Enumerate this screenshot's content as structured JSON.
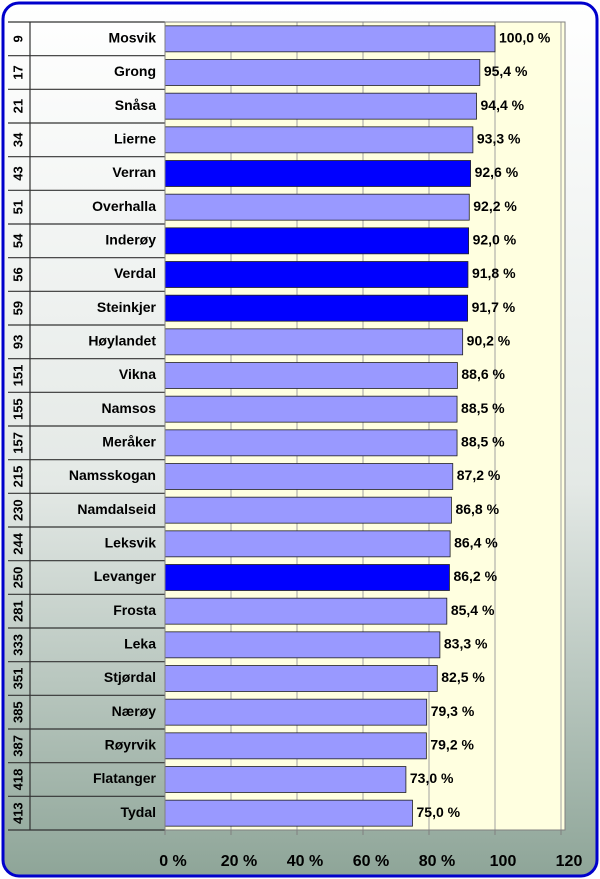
{
  "chart_data": {
    "type": "bar",
    "orientation": "horizontal",
    "categories": [
      "Mosvik",
      "Grong",
      "Snåsa",
      "Lierne",
      "Verran",
      "Overhalla",
      "Inderøy",
      "Verdal",
      "Steinkjer",
      "Høylandet",
      "Vikna",
      "Namsos",
      "Meråker",
      "Namsskogan",
      "Namdalseid",
      "Leksvik",
      "Levanger",
      "Frosta",
      "Leka",
      "Stjørdal",
      "Nærøy",
      "Røyrvik",
      "Flatanger",
      "Tydal"
    ],
    "ranks": [
      9,
      17,
      21,
      34,
      43,
      51,
      54,
      56,
      59,
      93,
      151,
      155,
      157,
      215,
      230,
      244,
      250,
      281,
      333,
      351,
      385,
      387,
      418,
      413
    ],
    "values": [
      100,
      95.4,
      94.4,
      93.3,
      92.6,
      92.2,
      92,
      91.8,
      91.7,
      90.2,
      88.6,
      88.5,
      88.5,
      87.2,
      86.8,
      86.4,
      86.2,
      85.4,
      83.3,
      82.5,
      79.3,
      79.2,
      73,
      75
    ],
    "value_labels": [
      "100,0 %",
      "95,4 %",
      "94,4 %",
      "93,3 %",
      "92,6 %",
      "92,2 %",
      "92,0 %",
      "91,8 %",
      "91,7 %",
      "90,2 %",
      "88,6 %",
      "88,5 %",
      "88,5 %",
      "87,2 %",
      "86,8 %",
      "86,4 %",
      "86,2 %",
      "85,4 %",
      "83,3 %",
      "82,5 %",
      "79,3 %",
      "79,2 %",
      "73,0 %",
      "75,0 %"
    ],
    "colors": [
      "#9999ff",
      "#9999ff",
      "#9999ff",
      "#9999ff",
      "#0000ff",
      "#9999ff",
      "#0000ff",
      "#0000ff",
      "#0000ff",
      "#9999ff",
      "#9999ff",
      "#9999ff",
      "#9999ff",
      "#9999ff",
      "#9999ff",
      "#9999ff",
      "#0000ff",
      "#9999ff",
      "#9999ff",
      "#9999ff",
      "#9999ff",
      "#9999ff",
      "#9999ff",
      "#9999ff"
    ],
    "xlim": [
      0,
      120
    ],
    "xticks": [
      {
        "value": 0,
        "label": "0 %"
      },
      {
        "value": 20,
        "label": "20 %"
      },
      {
        "value": 40,
        "label": "40 %"
      },
      {
        "value": 60,
        "label": "60 %"
      },
      {
        "value": 80,
        "label": "80 %"
      },
      100,
      120
    ],
    "grid": true
  }
}
